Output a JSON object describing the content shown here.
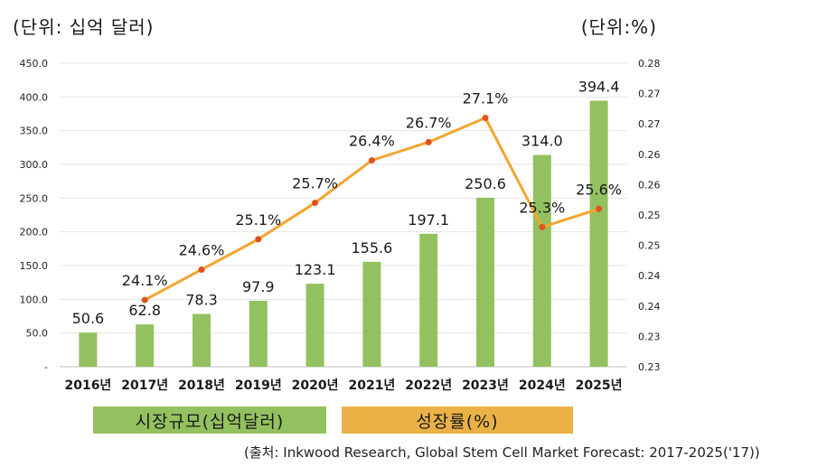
{
  "unit_left": "(단위: 십억 달러)",
  "unit_right": "(단위:%)",
  "legend": {
    "bar_label": "시장규모(십억달러)",
    "line_label": "성장률(%)"
  },
  "source": "(출처: Inkwood Research, Global Stem Cell Market Forecast: 2017-2025('17))",
  "colors": {
    "bar": "#94c15f",
    "line": "#f3a52f",
    "marker": "#e0521a",
    "legend_line_bg": "#eab246"
  },
  "chart_data": {
    "type": "bar+line",
    "categories": [
      "2016년",
      "2017년",
      "2018년",
      "2019년",
      "2020년",
      "2021년",
      "2022년",
      "2023년",
      "2024년",
      "2025년"
    ],
    "series": [
      {
        "name": "시장규모(십억달러)",
        "type": "bar",
        "axis": "left",
        "values": [
          50.6,
          62.8,
          78.3,
          97.9,
          123.1,
          155.6,
          197.1,
          250.6,
          314.0,
          394.4
        ],
        "labels": [
          "50.6",
          "62.8",
          "78.3",
          "97.9",
          "123.1",
          "155.6",
          "197.1",
          "250.6",
          "314.0",
          "394.4"
        ]
      },
      {
        "name": "성장률(%)",
        "type": "line",
        "axis": "right",
        "values": [
          null,
          0.241,
          0.246,
          0.251,
          0.257,
          0.264,
          0.267,
          0.271,
          0.253,
          0.256
        ],
        "labels": [
          "",
          "24.1%",
          "24.6%",
          "25.1%",
          "25.7%",
          "26.4%",
          "26.7%",
          "27.1%",
          "25.3%",
          "25.6%"
        ]
      }
    ],
    "y_left": {
      "min": 0,
      "max": 450,
      "ticks": [
        "-",
        "50.0",
        "100.0",
        "150.0",
        "200.0",
        "250.0",
        "300.0",
        "350.0",
        "400.0",
        "450.0"
      ]
    },
    "y_right": {
      "min": 0.23,
      "max": 0.28,
      "ticks": [
        "0.23",
        "0.23",
        "0.24",
        "0.24",
        "0.25",
        "0.25",
        "0.26",
        "0.26",
        "0.27",
        "0.27",
        "0.28"
      ]
    },
    "grid": true
  }
}
